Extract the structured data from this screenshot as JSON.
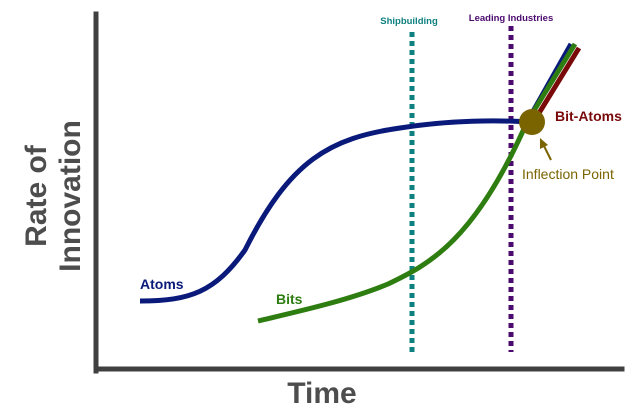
{
  "figure": {
    "y_axis_label_line1": "Rate of",
    "y_axis_label_line2": "Innovation",
    "x_axis_label": "Time"
  },
  "curves": {
    "atoms": {
      "label": "Atoms",
      "color": "#0a1a7a"
    },
    "bits": {
      "label": "Bits",
      "color": "#2e7d10"
    },
    "bit_atoms": {
      "label": "Bit-Atoms",
      "color": "#7a0a0a"
    }
  },
  "markers": {
    "shipbuilding": {
      "label": "Shipbuilding",
      "color": "#0f8080"
    },
    "leading_industries": {
      "label": "Leading Industries",
      "color": "#4b0a6e"
    }
  },
  "inflection": {
    "label": "Inflection Point",
    "color": "#7a6400"
  },
  "axis_color": "#404040"
}
